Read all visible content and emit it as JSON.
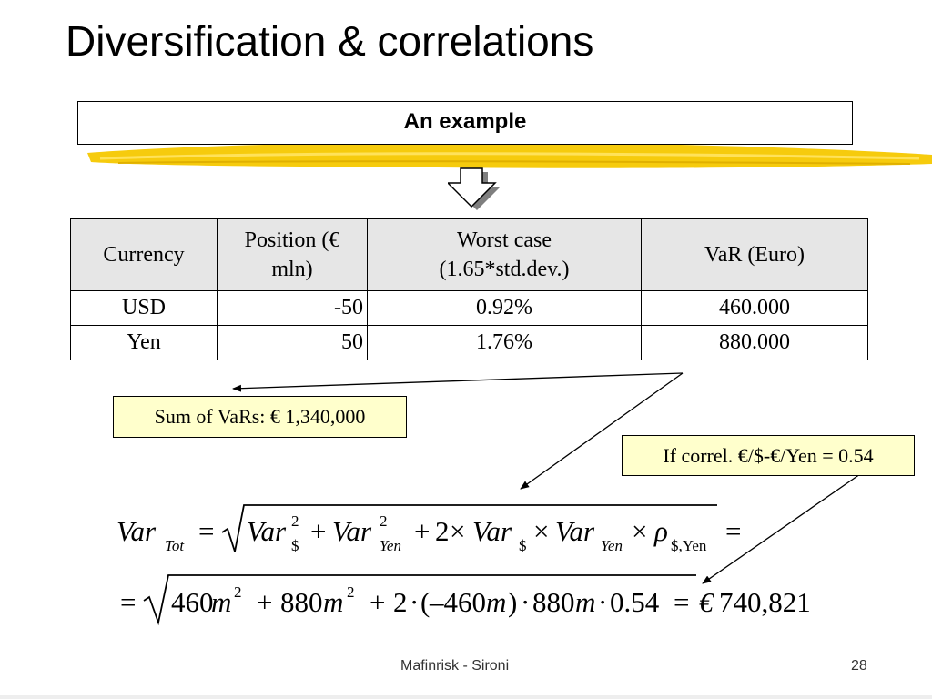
{
  "slide": {
    "title": "Diversification & correlations",
    "banner": "An example"
  },
  "table": {
    "headers": [
      "Currency",
      "Position (€ mln)",
      "Worst case (1.65*std.dev.)",
      "VaR (Euro)"
    ],
    "header_lines": [
      [
        "Currency"
      ],
      [
        "Position (€",
        "mln)"
      ],
      [
        "Worst case",
        "(1.65*std.dev.)"
      ],
      [
        "VaR (Euro)"
      ]
    ],
    "rows": [
      {
        "currency": "USD",
        "position": "-50",
        "worst_case": "0.92%",
        "var": "460.000"
      },
      {
        "currency": "Yen",
        "position": "50",
        "worst_case": "1.76%",
        "var": "880.000"
      }
    ]
  },
  "callouts": {
    "sum_of_vars": "Sum of VaRs: € 1,340,000",
    "correlation": "If correl. €/$-€/Yen = 0.54"
  },
  "formula": {
    "line1": {
      "lhs_main": "Var",
      "lhs_sub": "Tot",
      "eq": "=",
      "t1_main": "Var",
      "t1_sup": "2",
      "t1_sub": "$",
      "plus": "+",
      "t2_main": "Var",
      "t2_sup": "2",
      "t2_sub": "Yen",
      "plus2": "+",
      "coef": "2",
      "times": "×",
      "t3_main": "Var",
      "t3_sub": "$",
      "times2": "×",
      "t4_main": "Var",
      "t4_sub": "Yen",
      "times3": "×",
      "rho": "ρ",
      "rho_sub": "$,Yen",
      "eq_end": "="
    },
    "line2": {
      "eq": "=",
      "a_num": "460",
      "a_unit": "m",
      "a_sup": "2",
      "plus": "+",
      "b_num": "880",
      "b_unit": "m",
      "b_sup": "2",
      "plus2": "+",
      "c_num": "2",
      "dot": "·",
      "open": "(",
      "minus460": "–460",
      "c_unit": "m",
      "close": ")",
      "dot2": "·",
      "d_num": "880",
      "d_unit": "m",
      "dot3": "·",
      "corr": "0.54",
      "eq2": "=",
      "euro": "€",
      "result": "740,821"
    }
  },
  "footer": {
    "center": "Mafinrisk - Sironi",
    "page": "28"
  },
  "colors": {
    "highlighter": "#f5c800",
    "callout_fill": "#ffffcc",
    "table_header_fill": "#e6e6e6",
    "arrow_shadow": "#7f7f7f"
  },
  "icons": {
    "down_arrow": "block-down-arrow-icon"
  }
}
